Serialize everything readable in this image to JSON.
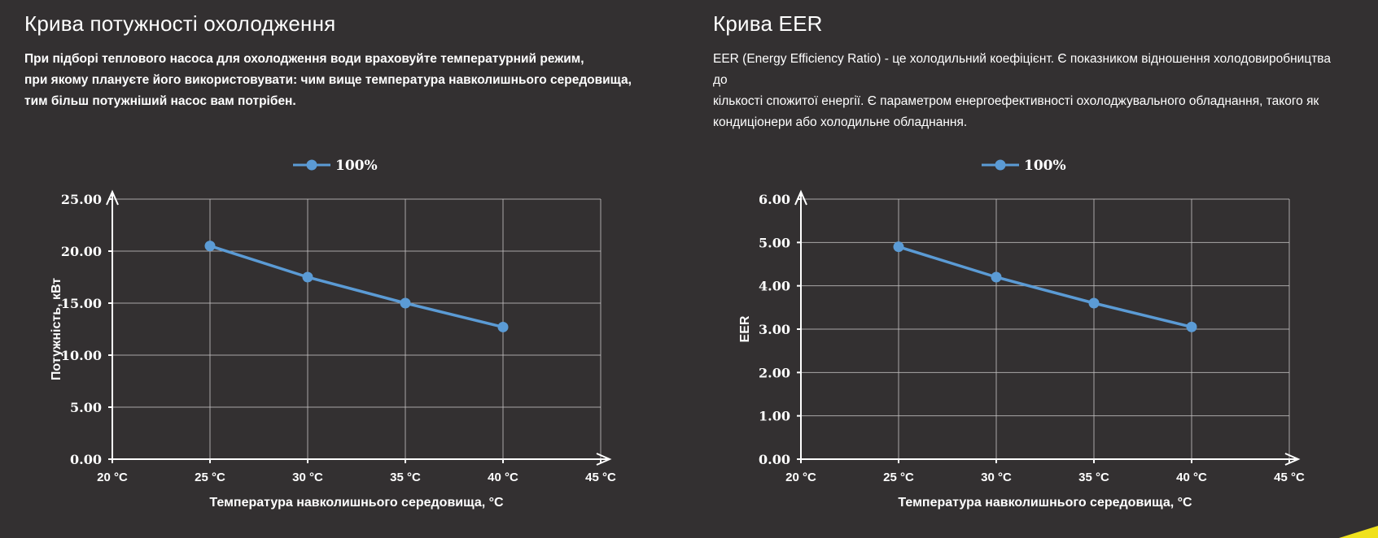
{
  "page": {
    "background_color": "#333031",
    "text_color": "#ffffff",
    "accent_yellow": "#f0e11c"
  },
  "panels": [
    {
      "title": "Крива потужності охолодження",
      "description": "При підборі теплового насоса для охолодження води враховуйте температурний режим,\nпри якому плануєте його використовувати: чим вище температура навколишнього середовища,\nтим більш потужніший насос вам потрібен."
    },
    {
      "title": "Крива EER",
      "description": "EER (Energy Efficiency Ratio) - це холодильний коефіцієнт. Є показником відношення холодовиробництва до\nкількості спожитої енергії. Є параметром енергоефективності охолоджувального обладнання, такого як\nкондиціонери або холодильне обладнання."
    }
  ],
  "chart_data": [
    {
      "type": "line",
      "title": "Крива потужності охолодження",
      "xlabel": "Температура навколишнього середовища, °C",
      "ylabel": "Потужність, кВт",
      "xlim": [
        20,
        45
      ],
      "ylim": [
        0,
        25
      ],
      "y_step": 5,
      "x_values": [
        20,
        25,
        30,
        35,
        40,
        45
      ],
      "x_ticks": [
        "20 °C",
        "25 °C",
        "30 °C",
        "35 °C",
        "40 °C",
        "45 °C"
      ],
      "y_ticks": [
        "0.00",
        "5.00",
        "10.00",
        "15.00",
        "20.00",
        "25.00"
      ],
      "grid": true,
      "legend_position": "top-center",
      "series": [
        {
          "name": "100%",
          "color": "#5b9bd5",
          "points": [
            {
              "x": 25,
              "y": 20.5
            },
            {
              "x": 30,
              "y": 17.5
            },
            {
              "x": 35,
              "y": 15.0
            },
            {
              "x": 40,
              "y": 12.7
            }
          ]
        }
      ],
      "colors": {
        "grid": "#c6c4c4",
        "axis": "#ffffff"
      }
    },
    {
      "type": "line",
      "title": "Крива EER",
      "xlabel": "Температура навколишнього середовища, °C",
      "ylabel": "EER",
      "xlim": [
        20,
        45
      ],
      "ylim": [
        0,
        6
      ],
      "y_step": 1,
      "x_values": [
        20,
        25,
        30,
        35,
        40,
        45
      ],
      "x_ticks": [
        "20 °C",
        "25 °C",
        "30 °C",
        "35 °C",
        "40 °C",
        "45 °C"
      ],
      "y_ticks": [
        "0.00",
        "1.00",
        "2.00",
        "3.00",
        "4.00",
        "5.00",
        "6.00"
      ],
      "grid": true,
      "legend_position": "top-center",
      "series": [
        {
          "name": "100%",
          "color": "#5b9bd5",
          "points": [
            {
              "x": 25,
              "y": 4.9
            },
            {
              "x": 30,
              "y": 4.2
            },
            {
              "x": 35,
              "y": 3.6
            },
            {
              "x": 40,
              "y": 3.05
            }
          ]
        }
      ],
      "colors": {
        "grid": "#c6c4c4",
        "axis": "#ffffff"
      }
    }
  ]
}
